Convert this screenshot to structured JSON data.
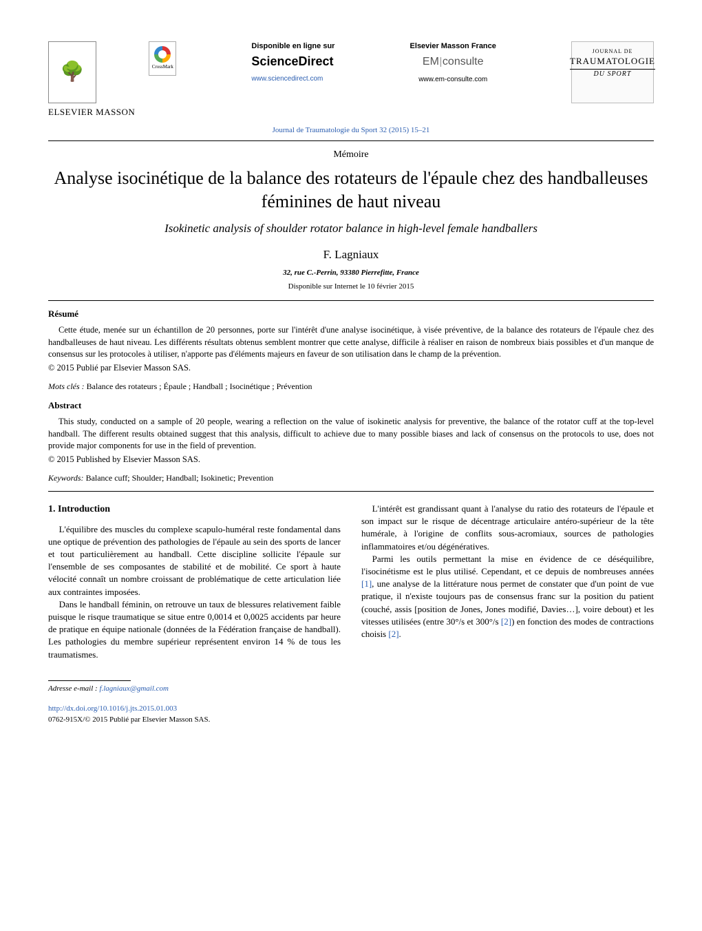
{
  "header": {
    "elsevier_label": "ELSEVIER MASSON",
    "crossmark_label": "CrossMark",
    "sd": {
      "available_label": "Disponible en ligne sur",
      "logo": "ScienceDirect",
      "link": "www.sciencedirect.com"
    },
    "em": {
      "brand_label": "Elsevier Masson France",
      "logo_prefix": "EM",
      "logo_suffix": "consulte",
      "link": "www.em-consulte.com"
    },
    "journal_cover": {
      "line1": "JOURNAL DE",
      "line2": "TRAUMATOLOGIE",
      "line3": "DU SPORT"
    },
    "citation": "Journal de Traumatologie du Sport 32 (2015) 15–21"
  },
  "front": {
    "doc_type": "Mémoire",
    "title_fr": "Analyse isocinétique de la balance des rotateurs de l'épaule chez des handballeuses féminines de haut niveau",
    "title_en": "Isokinetic analysis of shoulder rotator balance in high-level female handballers",
    "author": "F. Lagniaux",
    "affiliation": "32, rue C.-Perrin, 93380 Pierrefitte, France",
    "pub_date": "Disponible sur Internet le 10 février 2015"
  },
  "resume": {
    "heading": "Résumé",
    "body": "Cette étude, menée sur un échantillon de 20 personnes, porte sur l'intérêt d'une analyse isocinétique, à visée préventive, de la balance des rotateurs de l'épaule chez des handballeuses de haut niveau. Les différents résultats obtenus semblent montrer que cette analyse, difficile à réaliser en raison de nombreux biais possibles et d'un manque de consensus sur les protocoles à utiliser, n'apporte pas d'éléments majeurs en faveur de son utilisation dans le champ de la prévention.",
    "copyright": "© 2015 Publié par Elsevier Masson SAS.",
    "kw_label": "Mots clés :",
    "keywords": "Balance des rotateurs ; Épaule ; Handball ; Isocinétique ; Prévention"
  },
  "abstract": {
    "heading": "Abstract",
    "body": "This study, conducted on a sample of 20 people, wearing a reflection on the value of isokinetic analysis for preventive, the balance of the rotator cuff at the top-level handball. The different results obtained suggest that this analysis, difficult to achieve due to many possible biases and lack of consensus on the protocols to use, does not provide major components for use in the field of prevention.",
    "copyright": "© 2015 Published by Elsevier Masson SAS.",
    "kw_label": "Keywords:",
    "keywords": "Balance cuff; Shoulder; Handball; Isokinetic; Prevention"
  },
  "intro": {
    "heading": "1.  Introduction",
    "p1": "L'équilibre des muscles du complexe scapulo-huméral reste fondamental dans une optique de prévention des pathologies de l'épaule au sein des sports de lancer et tout particulièrement au handball. Cette discipline sollicite l'épaule sur l'ensemble de ses composantes de stabilité et de mobilité. Ce sport à haute vélocité connaît un nombre croissant de problématique de cette articulation liée aux contraintes imposées.",
    "p2": "Dans le handball féminin, on retrouve un taux de blessures relativement faible puisque le risque traumatique se situe entre 0,0014 et 0,0025 accidents par heure de pratique en équipe nationale (données de la Fédération française de handball). Les pathologies du membre supérieur représentent environ 14 % de tous les traumatismes.",
    "p3": "L'intérêt est grandissant quant à l'analyse du ratio des rotateurs de l'épaule et son impact sur le risque de décentrage articulaire antéro-supérieur de la tête humérale, à l'origine de conflits sous-acromiaux, sources de pathologies inflammatoires et/ou dégénératives.",
    "p4_a": "Parmi les outils permettant la mise en évidence de ce déséquilibre, l'isocinétisme est le plus utilisé. Cependant, et ce depuis de nombreuses années ",
    "ref1": "[1]",
    "p4_b": ", une analyse de la littérature nous permet de constater que d'un point de vue pratique, il n'existe toujours pas de consensus franc sur la position du patient (couché, assis [position de Jones, Jones modifié, Davies…], voire debout) et les vitesses utilisées (entre 30°/s et 300°/s ",
    "ref2": "[2]",
    "p4_c": ") en fonction des modes de contractions choisis ",
    "ref3": "[2]",
    "p4_d": "."
  },
  "footer": {
    "email_label": "Adresse e-mail :",
    "email": "f.lagniaux@gmail.com",
    "doi": "http://dx.doi.org/10.1016/j.jts.2015.01.003",
    "issn_line": "0762-915X/© 2015 Publié par Elsevier Masson SAS."
  },
  "colors": {
    "link": "#2a5db0",
    "text": "#000000",
    "bg": "#ffffff"
  }
}
